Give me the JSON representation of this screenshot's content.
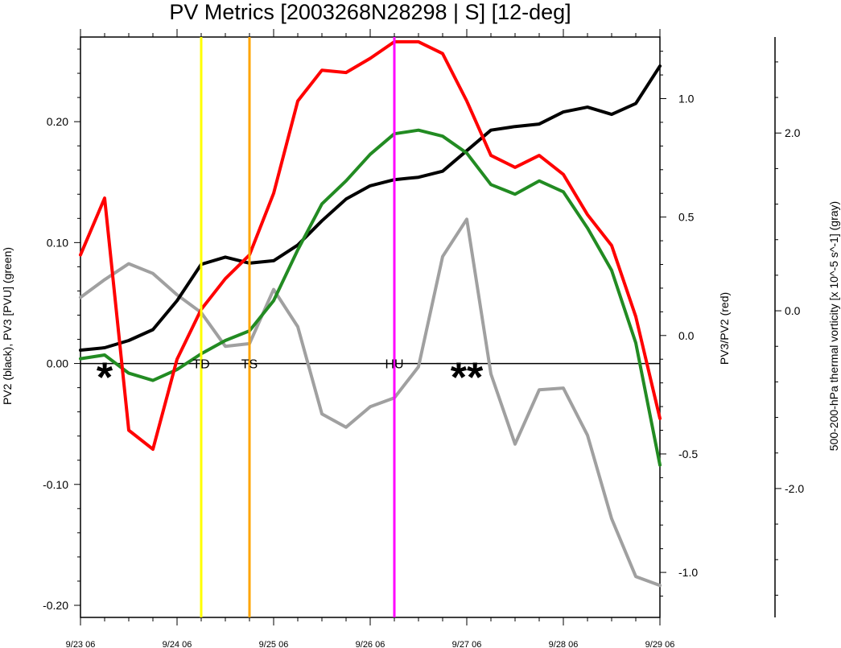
{
  "chart_data": {
    "type": "line",
    "title": "PV Metrics [2003268N28298 | S] [12-deg]",
    "x_tick_labels": [
      "9/23 06",
      "9/24 06",
      "9/25 06",
      "9/26 06",
      "9/27 06",
      "9/28 06",
      "9/29 06"
    ],
    "x_range_days": [
      0,
      6
    ],
    "axes": {
      "left": {
        "label": "PV2 (black), PV3 [PVU] (green)",
        "range": [
          -0.21,
          0.27
        ],
        "ticks": [
          -0.2,
          -0.1,
          0.0,
          0.1,
          0.2
        ],
        "tick_labels": [
          "-0.20",
          "-0.10",
          "0.00",
          "0.10",
          "0.20"
        ]
      },
      "right": {
        "label": "PV3/PV2 (red)",
        "range": [
          -1.19,
          1.26
        ],
        "ticks": [
          -1.0,
          -0.5,
          0.0,
          0.5,
          1.0
        ],
        "tick_labels": [
          "-1.0",
          "-0.5",
          "0.0",
          "0.5",
          "1.0"
        ]
      },
      "far_right": {
        "label": "500-200-hPa thermal vorticity [x 10^-5 s^-1] (gray)",
        "range": [
          -3.45,
          3.08
        ],
        "ticks": [
          -2.0,
          0.0,
          2.0
        ],
        "tick_labels": [
          "-2.0",
          "0.0",
          "2.0"
        ]
      }
    },
    "series": [
      {
        "name": "PV2",
        "color": "#000000",
        "axis": "left",
        "x": [
          0,
          0.25,
          0.5,
          0.75,
          1,
          1.25,
          1.5,
          1.75,
          2,
          2.25,
          2.5,
          2.75,
          3,
          3.25,
          3.5,
          3.75,
          4,
          4.25,
          4.5,
          4.75,
          5,
          5.25,
          5.5,
          5.75,
          6
        ],
        "values": [
          0.011,
          0.013,
          0.019,
          0.028,
          0.052,
          0.082,
          0.088,
          0.083,
          0.085,
          0.098,
          0.118,
          0.136,
          0.147,
          0.152,
          0.154,
          0.159,
          0.176,
          0.193,
          0.196,
          0.198,
          0.208,
          0.212,
          0.206,
          0.215,
          0.246
        ]
      },
      {
        "name": "PV3",
        "color": "#228b22",
        "axis": "left",
        "x": [
          0,
          0.25,
          0.5,
          0.75,
          1,
          1.25,
          1.5,
          1.75,
          2,
          2.25,
          2.5,
          2.75,
          3,
          3.25,
          3.5,
          3.75,
          4,
          4.25,
          4.5,
          4.75,
          5,
          5.25,
          5.5,
          5.75,
          6
        ],
        "values": [
          0.004,
          0.007,
          -0.008,
          -0.014,
          -0.005,
          0.008,
          0.019,
          0.027,
          0.052,
          0.094,
          0.132,
          0.151,
          0.173,
          0.19,
          0.193,
          0.188,
          0.174,
          0.148,
          0.14,
          0.151,
          0.142,
          0.112,
          0.077,
          0.017,
          -0.084
        ]
      },
      {
        "name": "PV3/PV2",
        "color": "#ff0000",
        "axis": "right",
        "x": [
          0,
          0.25,
          0.5,
          0.75,
          1,
          1.25,
          1.5,
          1.75,
          2,
          2.25,
          2.5,
          2.75,
          3,
          3.25,
          3.5,
          3.75,
          4,
          4.25,
          4.5,
          4.75,
          5,
          5.25,
          5.5,
          5.75,
          6
        ],
        "values": [
          0.34,
          0.58,
          -0.4,
          -0.48,
          -0.1,
          0.11,
          0.24,
          0.34,
          0.6,
          0.99,
          1.12,
          1.11,
          1.17,
          1.24,
          1.24,
          1.19,
          0.99,
          0.76,
          0.71,
          0.76,
          0.68,
          0.51,
          0.38,
          0.08,
          -0.35
        ]
      },
      {
        "name": "500-200-hPa thermal vorticity",
        "color": "#a0a0a0",
        "axis": "far_right",
        "x": [
          0,
          0.25,
          0.5,
          0.75,
          1,
          1.25,
          1.5,
          1.75,
          2,
          2.25,
          2.5,
          2.75,
          3,
          3.25,
          3.5,
          3.75,
          4,
          4.25,
          4.5,
          4.75,
          5,
          5.25,
          5.5,
          5.75,
          6
        ],
        "values": [
          0.15,
          0.35,
          0.53,
          0.42,
          0.18,
          -0.02,
          -0.4,
          -0.37,
          0.24,
          -0.18,
          -1.16,
          -1.31,
          -1.08,
          -0.98,
          -0.63,
          0.61,
          1.03,
          -0.71,
          -1.5,
          -0.89,
          -0.87,
          -1.4,
          -2.34,
          -2.99,
          -3.09
        ]
      }
    ],
    "vertical_markers": [
      {
        "label": "TD",
        "x": 1.25,
        "color": "#ffff00"
      },
      {
        "label": "TS",
        "x": 1.75,
        "color": "#ffa500"
      },
      {
        "label": "HU",
        "x": 3.25,
        "color": "#ff00ff"
      }
    ],
    "star_annotations": [
      {
        "label": "*",
        "x": 0.25
      },
      {
        "label": "**",
        "x": 4.0
      }
    ],
    "zero_line": true,
    "grid": false
  }
}
